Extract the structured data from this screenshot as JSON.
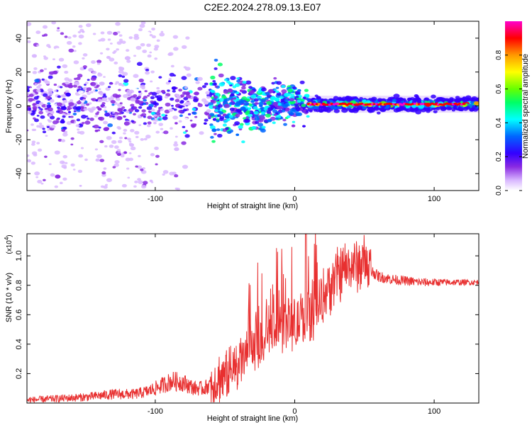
{
  "title": "C2E2.2024.278.09.13.E07",
  "chart_data": [
    {
      "type": "heatmap",
      "xlabel": "Height of straight line (km)",
      "ylabel": "Frequency (Hz)",
      "xlim": [
        -192,
        132
      ],
      "ylim": [
        -50,
        50
      ],
      "xticks": [
        -100,
        0,
        100
      ],
      "yticks": [
        -40,
        -20,
        0,
        20,
        40
      ],
      "colorbar": {
        "label": "Normalized spectral amplitude",
        "range": [
          0,
          1
        ],
        "ticks": [
          "0.0",
          "0.2",
          "0.4",
          "0.6",
          "0.8"
        ],
        "colormap": [
          "#ffffff",
          "#d9b8ff",
          "#8a2be2",
          "#3300ff",
          "#0066ff",
          "#00ffff",
          "#00ff66",
          "#66ff00",
          "#ffff00",
          "#ff9900",
          "#ff0000",
          "#ff00cc"
        ]
      },
      "features": {
        "noisy_region_x": [
          -192,
          -60
        ],
        "transition_x": [
          -60,
          10
        ],
        "steady_line_x": [
          10,
          132
        ],
        "steady_line_frequency_hz": 1
      }
    },
    {
      "type": "line",
      "xlabel": "Height of straight line (km)",
      "ylabel": "SNR (10 * v/v)",
      "y_multiplier_label": "(x10",
      "y_multiplier_exp": "4",
      "xlim": [
        -192,
        132
      ],
      "ylim": [
        0,
        1.15
      ],
      "xticks": [
        -100,
        0,
        100
      ],
      "yticks": [
        "0.2",
        "0.4",
        "0.6",
        "0.8",
        "1.0"
      ],
      "line_color": "#e83030",
      "series": [
        {
          "x": [
            -192,
            -170,
            -150,
            -130,
            -115,
            -105,
            -95,
            -88,
            -80,
            -72,
            -65,
            -55,
            -45,
            -35,
            -28,
            -20,
            -12,
            -5,
            0,
            5,
            8,
            12,
            20,
            25,
            30,
            38,
            45,
            50,
            55,
            60,
            70,
            80,
            90,
            100,
            110,
            120,
            132
          ],
          "y": [
            0.02,
            0.03,
            0.04,
            0.06,
            0.06,
            0.08,
            0.12,
            0.15,
            0.14,
            0.1,
            0.1,
            0.16,
            0.22,
            0.32,
            0.4,
            0.46,
            0.52,
            0.55,
            0.52,
            0.56,
            0.58,
            0.62,
            0.72,
            0.8,
            0.86,
            0.92,
            0.94,
            0.95,
            0.9,
            0.86,
            0.84,
            0.83,
            0.82,
            0.82,
            0.82,
            0.82,
            0.82
          ]
        }
      ]
    }
  ]
}
